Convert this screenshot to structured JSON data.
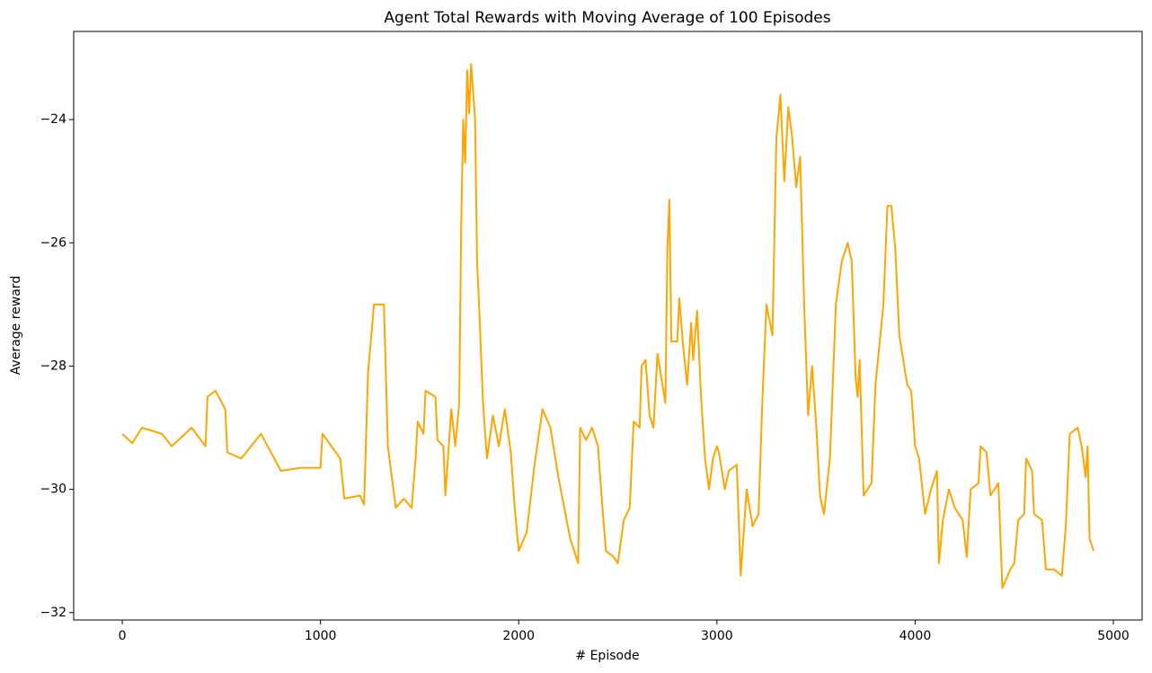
{
  "chart_data": {
    "type": "line",
    "title": "Agent Total Rewards with Moving Average of 100 Episodes",
    "x_label": "# Episode",
    "y_label": "Average reward",
    "color": "#ffa500",
    "xlim": [
      -245,
      5145
    ],
    "ylim": [
      -32.12,
      -22.57
    ],
    "xticks": [
      0,
      1000,
      2000,
      3000,
      4000,
      5000
    ],
    "yticks": [
      {
        "value": -32,
        "label": "−32"
      },
      {
        "value": -30,
        "label": "−30"
      },
      {
        "value": -28,
        "label": "−28"
      },
      {
        "value": -26,
        "label": "−26"
      },
      {
        "value": -24,
        "label": "−24"
      }
    ],
    "x": [
      0,
      50,
      100,
      200,
      250,
      350,
      420,
      430,
      470,
      520,
      530,
      600,
      700,
      750,
      800,
      900,
      1000,
      1010,
      1100,
      1120,
      1200,
      1220,
      1240,
      1270,
      1320,
      1340,
      1380,
      1420,
      1460,
      1480,
      1490,
      1520,
      1530,
      1580,
      1590,
      1620,
      1630,
      1660,
      1680,
      1700,
      1710,
      1720,
      1730,
      1740,
      1750,
      1760,
      1780,
      1790,
      1800,
      1820,
      1840,
      1870,
      1900,
      1930,
      1960,
      1980,
      2000,
      2040,
      2080,
      2120,
      2160,
      2200,
      2260,
      2300,
      2310,
      2340,
      2370,
      2400,
      2420,
      2440,
      2480,
      2500,
      2530,
      2560,
      2580,
      2610,
      2620,
      2640,
      2660,
      2680,
      2700,
      2740,
      2750,
      2760,
      2770,
      2800,
      2810,
      2830,
      2850,
      2870,
      2880,
      2900,
      2920,
      2940,
      2960,
      2980,
      3000,
      3010,
      3040,
      3060,
      3100,
      3120,
      3150,
      3180,
      3210,
      3230,
      3250,
      3280,
      3300,
      3320,
      3340,
      3360,
      3380,
      3400,
      3420,
      3440,
      3460,
      3480,
      3500,
      3520,
      3540,
      3570,
      3600,
      3630,
      3660,
      3680,
      3700,
      3710,
      3720,
      3740,
      3780,
      3800,
      3840,
      3860,
      3880,
      3900,
      3920,
      3960,
      3980,
      4000,
      4020,
      4050,
      4080,
      4110,
      4120,
      4140,
      4170,
      4200,
      4240,
      4260,
      4280,
      4320,
      4330,
      4360,
      4380,
      4420,
      4440,
      4480,
      4500,
      4520,
      4550,
      4560,
      4590,
      4600,
      4640,
      4660,
      4700,
      4740,
      4760,
      4780,
      4820,
      4840,
      4860,
      4870,
      4880,
      4900
    ],
    "values": [
      -29.1,
      -29.25,
      -29.0,
      -29.1,
      -29.3,
      -29.0,
      -29.3,
      -28.5,
      -28.4,
      -28.7,
      -29.4,
      -29.5,
      -29.1,
      -29.4,
      -29.7,
      -29.65,
      -29.65,
      -29.1,
      -29.5,
      -30.15,
      -30.1,
      -30.25,
      -28.1,
      -27.0,
      -27.0,
      -29.3,
      -30.3,
      -30.15,
      -30.3,
      -29.5,
      -28.9,
      -29.1,
      -28.4,
      -28.5,
      -29.2,
      -29.3,
      -30.1,
      -28.7,
      -29.3,
      -28.6,
      -25.7,
      -24.0,
      -24.7,
      -23.2,
      -23.9,
      -23.1,
      -24.0,
      -26.3,
      -27.0,
      -28.6,
      -29.5,
      -28.8,
      -29.3,
      -28.7,
      -29.4,
      -30.3,
      -31.0,
      -30.7,
      -29.6,
      -28.7,
      -29.0,
      -29.8,
      -30.8,
      -31.2,
      -29.0,
      -29.2,
      -29.0,
      -29.3,
      -30.2,
      -31.0,
      -31.1,
      -31.2,
      -30.5,
      -30.3,
      -28.9,
      -29.0,
      -28.0,
      -27.9,
      -28.8,
      -29.0,
      -27.8,
      -28.6,
      -26.1,
      -25.3,
      -27.6,
      -27.6,
      -26.9,
      -27.7,
      -28.3,
      -27.3,
      -27.9,
      -27.1,
      -28.5,
      -29.5,
      -30.0,
      -29.5,
      -29.3,
      -29.4,
      -30.0,
      -29.7,
      -29.6,
      -31.4,
      -30.0,
      -30.6,
      -30.4,
      -28.5,
      -27.0,
      -27.5,
      -24.3,
      -23.6,
      -25.0,
      -23.8,
      -24.3,
      -25.1,
      -24.6,
      -27.0,
      -28.8,
      -28.0,
      -28.9,
      -30.1,
      -30.4,
      -29.5,
      -27.0,
      -26.3,
      -26.0,
      -26.3,
      -28.2,
      -28.5,
      -27.9,
      -30.1,
      -29.9,
      -28.3,
      -27.0,
      -25.4,
      -25.4,
      -26.1,
      -27.5,
      -28.3,
      -28.4,
      -29.3,
      -29.5,
      -30.4,
      -30.0,
      -29.7,
      -31.2,
      -30.5,
      -30.0,
      -30.3,
      -30.5,
      -31.1,
      -30.0,
      -29.9,
      -29.3,
      -29.4,
      -30.1,
      -29.9,
      -31.6,
      -31.3,
      -31.2,
      -30.5,
      -30.4,
      -29.5,
      -29.7,
      -30.4,
      -30.5,
      -31.3,
      -31.3,
      -31.4,
      -30.6,
      -29.1,
      -29.0,
      -29.3,
      -29.8,
      -29.3,
      -30.8,
      -31.0
    ]
  }
}
